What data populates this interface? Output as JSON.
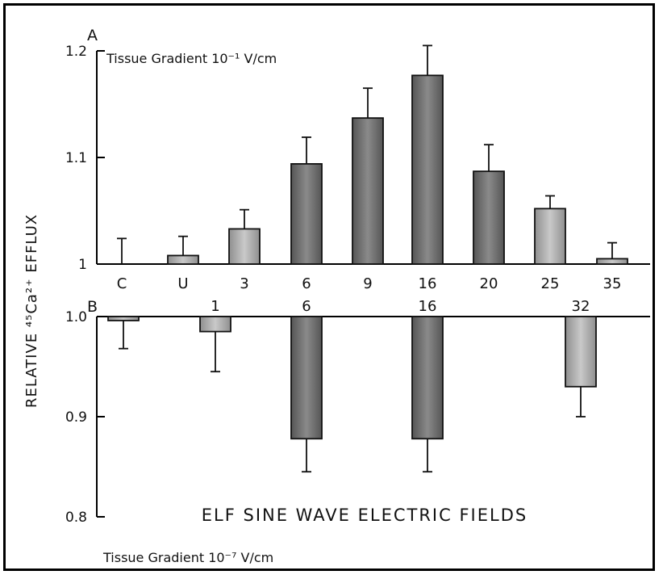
{
  "chart_data": [
    {
      "type": "bar",
      "panel_label": "A",
      "gradient_label": "Tissue Gradient 10⁻¹ V/cm",
      "categories": [
        "C",
        "U",
        "3",
        "6",
        "9",
        "16",
        "20",
        "25",
        "35"
      ],
      "values": [
        1.0,
        1.008,
        1.033,
        1.094,
        1.137,
        1.177,
        1.087,
        1.052,
        1.005
      ],
      "errors": [
        0.024,
        0.018,
        0.018,
        0.025,
        0.028,
        0.028,
        0.025,
        0.012,
        0.015
      ],
      "ylim": [
        1.0,
        1.2
      ],
      "yticks": [
        "1",
        "1.1",
        "1.2"
      ],
      "baseline": 1.0
    },
    {
      "type": "bar",
      "panel_label": "B",
      "gradient_label": "Tissue Gradient 10⁻⁷ V/cm",
      "categories": [
        "",
        "1",
        "6",
        "16",
        "32"
      ],
      "values": [
        0.996,
        0.985,
        0.878,
        0.878,
        0.93
      ],
      "errors": [
        0.028,
        0.04,
        0.033,
        0.033,
        0.03
      ],
      "ylim": [
        0.8,
        1.0
      ],
      "yticks": [
        "0.8",
        "0.9",
        "1.0"
      ],
      "baseline": 1.0
    }
  ],
  "ylabel": "RELATIVE ⁴⁵Ca²⁺ EFFLUX",
  "xlabel": "ELF SINE WAVE ELECTRIC FIELDS"
}
